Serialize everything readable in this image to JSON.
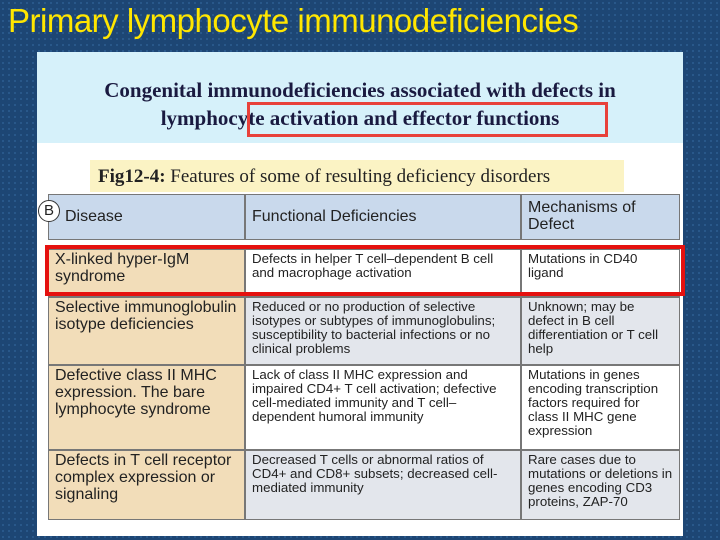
{
  "slide_title": "Primary lymphocyte immunodeficiencies",
  "heading": {
    "line1": "Congenital immunodeficiencies associated with defects in",
    "line2_pre": "lymphocyte ",
    "line2_highlight": "activation and effector functions"
  },
  "caption": {
    "label": "Fig12-4:",
    "text": " Features of some of resulting deficiency disorders"
  },
  "table": {
    "panel_label": "B",
    "headers": [
      "Disease",
      "Functional Deficiencies",
      "Mechanisms of Defect"
    ],
    "rows": [
      [
        "X-linked hyper-IgM syndrome",
        "Defects in helper T cell–dependent B cell and macrophage activation",
        "Mutations in CD40 ligand"
      ],
      [
        "Selective immunoglobulin isotype deficiencies",
        "Reduced or no production of selective isotypes or subtypes of immunoglobulins; susceptibility to bacterial infections or no clinical problems",
        "Unknown; may be defect in B cell differentiation or T cell help"
      ],
      [
        "Defective class II MHC expression. The bare lymphocyte syndrome",
        "Lack of class II MHC expression and impaired CD4+ T cell activation; defective cell-mediated immunity and T cell–dependent humoral immunity",
        "Mutations in genes encoding transcription factors required for class II MHC gene expression"
      ],
      [
        "Defects in T cell receptor complex expression or signaling",
        "Decreased T cells or abnormal ratios of CD4+ and CD8+ subsets; decreased cell-mediated immunity",
        "Rare cases due to mutations or deletions in genes encoding CD3 proteins, ZAP-70"
      ]
    ]
  },
  "colors": {
    "title": "#ffe600",
    "highlight_box": "#e5110f",
    "background": "#1d4674"
  }
}
